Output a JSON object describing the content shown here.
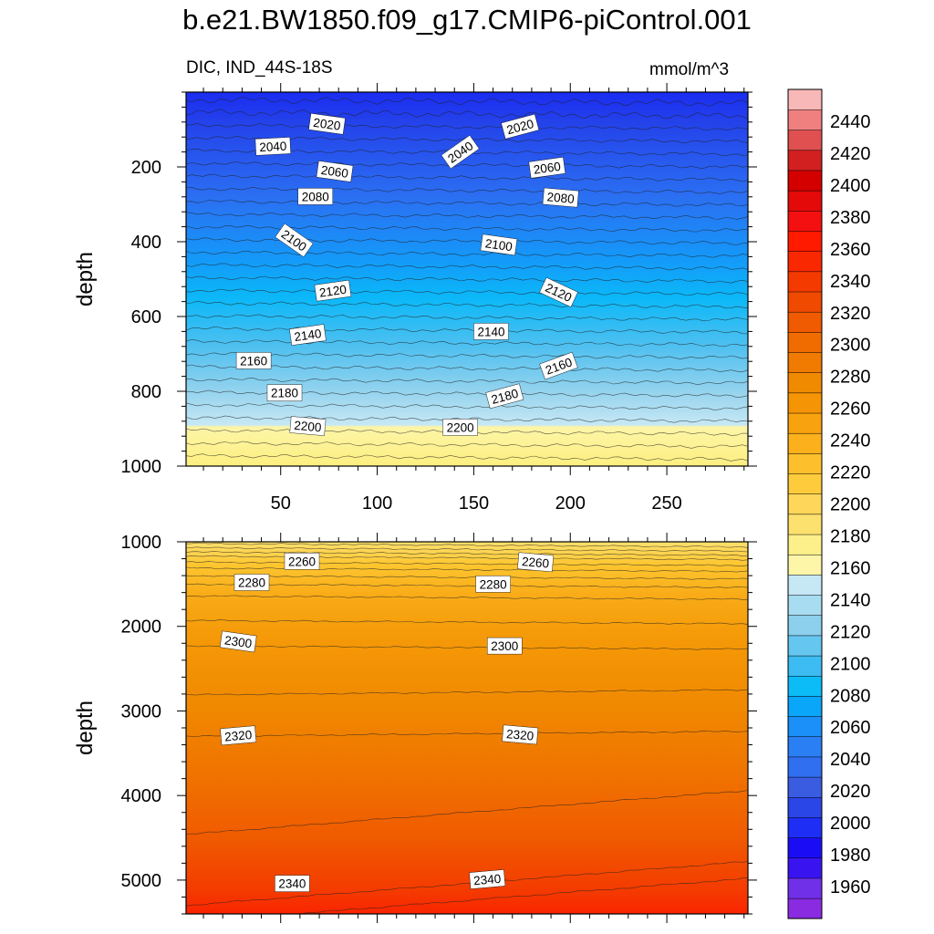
{
  "chart_data": {
    "type": "contour",
    "title": "b.e21.BW1850.f09_g17.CMIP6-piControl.001",
    "variable_label": "DIC, IND_44S-18S",
    "units": "mmol/m^3",
    "x": {
      "range": [
        1,
        292
      ],
      "ticks": [
        50,
        100,
        150,
        200,
        250
      ],
      "labels": [
        "50",
        "100",
        "150",
        "200",
        "250"
      ]
    },
    "panels": [
      {
        "name": "upper",
        "ylabel": "depth",
        "ylim": [
          0,
          1000
        ],
        "y_inverted": true,
        "y_ticks": [
          200,
          400,
          600,
          800,
          1000
        ],
        "y_tick_labels": [
          "200",
          "400",
          "600",
          "800",
          "1000"
        ],
        "contour_labels": [
          {
            "text": "2020",
            "x": 74,
            "y": 85,
            "angle": 8
          },
          {
            "text": "2020",
            "x": 174,
            "y": 92,
            "angle": -15
          },
          {
            "text": "2040",
            "x": 46,
            "y": 145,
            "angle": -3
          },
          {
            "text": "2040",
            "x": 143,
            "y": 160,
            "angle": -35
          },
          {
            "text": "2060",
            "x": 78,
            "y": 212,
            "angle": 8
          },
          {
            "text": "2060",
            "x": 188,
            "y": 202,
            "angle": -8
          },
          {
            "text": "2080",
            "x": 68,
            "y": 279,
            "angle": 0
          },
          {
            "text": "2080",
            "x": 195,
            "y": 282,
            "angle": 5
          },
          {
            "text": "2100",
            "x": 57,
            "y": 396,
            "angle": 35
          },
          {
            "text": "2100",
            "x": 163,
            "y": 408,
            "angle": 8
          },
          {
            "text": "2120",
            "x": 77,
            "y": 531,
            "angle": -8
          },
          {
            "text": "2120",
            "x": 194,
            "y": 535,
            "angle": 25
          },
          {
            "text": "2140",
            "x": 64,
            "y": 649,
            "angle": -8
          },
          {
            "text": "2140",
            "x": 159,
            "y": 640,
            "angle": 0
          },
          {
            "text": "2160",
            "x": 36,
            "y": 718,
            "angle": 0
          },
          {
            "text": "2160",
            "x": 194,
            "y": 732,
            "angle": -20
          },
          {
            "text": "2180",
            "x": 52,
            "y": 804,
            "angle": 0
          },
          {
            "text": "2180",
            "x": 166,
            "y": 813,
            "angle": -15
          },
          {
            "text": "2200",
            "x": 64,
            "y": 893,
            "angle": 5
          },
          {
            "text": "2200",
            "x": 143,
            "y": 896,
            "angle": 0
          }
        ]
      },
      {
        "name": "lower",
        "ylabel": "depth",
        "ylim": [
          1000,
          5400
        ],
        "y_inverted": true,
        "y_ticks": [
          1000,
          2000,
          3000,
          4000,
          5000
        ],
        "y_tick_labels": [
          "1000",
          "2000",
          "3000",
          "4000",
          "5000"
        ],
        "contour_labels": [
          {
            "text": "2260",
            "x": 61,
            "y": 1230,
            "angle": 0
          },
          {
            "text": "2260",
            "x": 182,
            "y": 1240,
            "angle": 5
          },
          {
            "text": "2280",
            "x": 35,
            "y": 1480,
            "angle": 0
          },
          {
            "text": "2280",
            "x": 160,
            "y": 1500,
            "angle": 0
          },
          {
            "text": "2300",
            "x": 28,
            "y": 2180,
            "angle": 8
          },
          {
            "text": "2300",
            "x": 166,
            "y": 2230,
            "angle": 0
          },
          {
            "text": "2320",
            "x": 28,
            "y": 3290,
            "angle": -5
          },
          {
            "text": "2320",
            "x": 174,
            "y": 3280,
            "angle": 5
          },
          {
            "text": "2340",
            "x": 56,
            "y": 5040,
            "angle": 0
          },
          {
            "text": "2340",
            "x": 157,
            "y": 4990,
            "angle": -5
          }
        ]
      }
    ],
    "colorbar": {
      "levels": [
        1960,
        1980,
        2000,
        2020,
        2040,
        2060,
        2080,
        2100,
        2120,
        2140,
        2160,
        2180,
        2200,
        2220,
        2240,
        2260,
        2280,
        2300,
        2320,
        2340,
        2360,
        2380,
        2400,
        2420,
        2440
      ],
      "labels": [
        "1960",
        "1980",
        "2000",
        "2020",
        "2040",
        "2060",
        "2080",
        "2100",
        "2120",
        "2140",
        "2160",
        "2180",
        "2200",
        "2220",
        "2240",
        "2260",
        "2280",
        "2300",
        "2320",
        "2340",
        "2360",
        "2380",
        "2400",
        "2420",
        "2440"
      ],
      "colors": [
        "#8a2be2",
        "#7030e8",
        "#3a14f0",
        "#1a0df5",
        "#1e2ef5",
        "#2a46e6",
        "#3a5ce0",
        "#2f6ff0",
        "#2a7ff5",
        "#1a90f8",
        "#0aa6fa",
        "#0bbcf7",
        "#3cbcf2",
        "#65c6f0",
        "#8cd0ee",
        "#a8dcf0",
        "#c6e8f5",
        "#fdf5a8",
        "#fdf08a",
        "#fde16e",
        "#fdd65a",
        "#fdcb3c",
        "#fdbf2b",
        "#fcb01c",
        "#f9a20f",
        "#f59405",
        "#f08a00",
        "#f07b00",
        "#f06c00",
        "#f05a00",
        "#f04a00",
        "#f53a00",
        "#fa2800",
        "#ff1a00",
        "#f41010",
        "#e40a0a",
        "#d40000",
        "#d22020",
        "#e05050",
        "#f08080",
        "#f9b8b8"
      ]
    }
  }
}
